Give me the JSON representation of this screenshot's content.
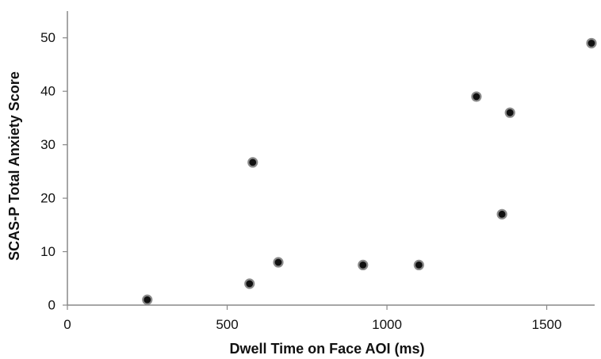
{
  "chart_data": {
    "type": "scatter",
    "xlabel": "Dwell Time on Face AOI (ms)",
    "ylabel": "SCAS-P Total Anxiety Score",
    "xlim": [
      0,
      1650
    ],
    "ylim": [
      0,
      55
    ],
    "xticks": [
      0,
      500,
      1000,
      1500
    ],
    "yticks": [
      0,
      10,
      20,
      30,
      40,
      50
    ],
    "xtick_labels": [
      "0",
      "500",
      "1000",
      "1500"
    ],
    "ytick_labels": [
      "0",
      "10",
      "20",
      "30",
      "40",
      "50"
    ],
    "grid": false,
    "marker_color": "#111111",
    "marker_edge_color": "#8a8a8a",
    "points": [
      {
        "x": 250,
        "y": 1
      },
      {
        "x": 570,
        "y": 4
      },
      {
        "x": 580,
        "y": 26.7
      },
      {
        "x": 660,
        "y": 8
      },
      {
        "x": 925,
        "y": 7.5
      },
      {
        "x": 1100,
        "y": 7.5
      },
      {
        "x": 1280,
        "y": 39
      },
      {
        "x": 1360,
        "y": 17
      },
      {
        "x": 1385,
        "y": 36
      },
      {
        "x": 1640,
        "y": 49
      }
    ]
  }
}
